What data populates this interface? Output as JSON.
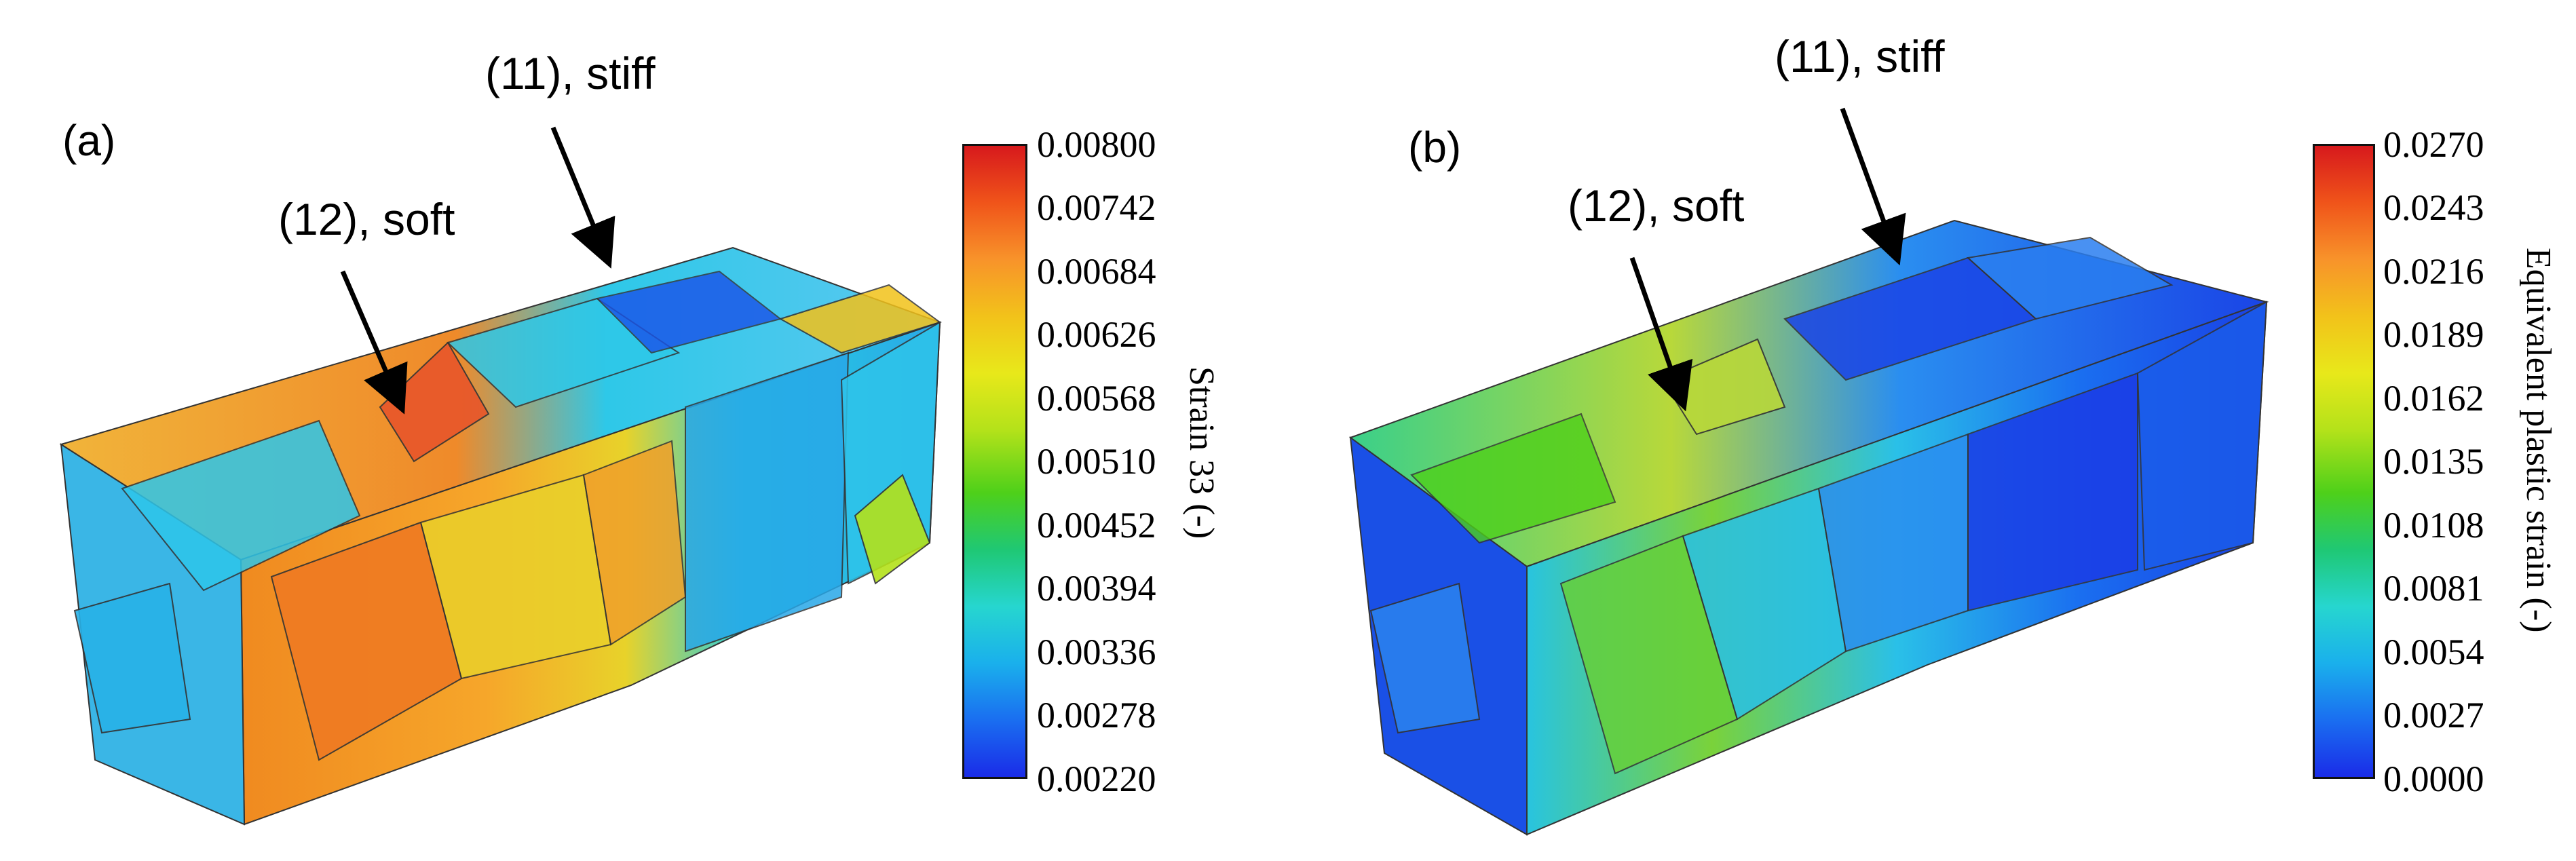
{
  "panels": [
    {
      "label": "(a)",
      "annotations": {
        "stiff": "(11), stiff",
        "soft": "(12), soft"
      },
      "colorbar": {
        "title": "Strain 33 (-)",
        "ticks": [
          "0.00800",
          "0.00742",
          "0.00684",
          "0.00626",
          "0.00568",
          "0.00510",
          "0.00452",
          "0.00394",
          "0.00336",
          "0.00278",
          "0.00220"
        ]
      }
    },
    {
      "label": "(b)",
      "annotations": {
        "stiff": "(11), stiff",
        "soft": "(12), soft"
      },
      "colorbar": {
        "title": "Equivalent plastic strain (-)",
        "ticks": [
          "0.0270",
          "0.0243",
          "0.0216",
          "0.0189",
          "0.0162",
          "0.0135",
          "0.0108",
          "0.0081",
          "0.0054",
          "0.0027",
          "0.0000"
        ]
      }
    }
  ],
  "colors": {
    "jet": [
      "#d7191c",
      "#f0541a",
      "#f8932a",
      "#f2c21a",
      "#e8e81a",
      "#b4e21a",
      "#4ed01a",
      "#1fc874",
      "#26d6cf",
      "#1ab0ec",
      "#1a6ef0",
      "#1a2ce8"
    ]
  }
}
